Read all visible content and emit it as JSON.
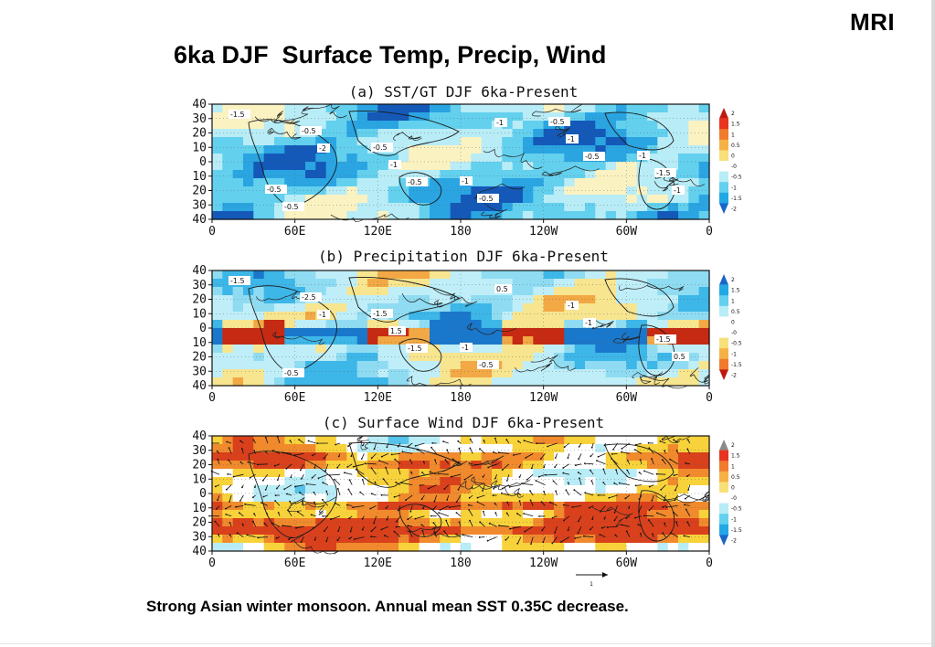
{
  "logo": "MRI",
  "title": "6ka DJF  Surface Temp, Precip, Wind",
  "caption": "Strong Asian winter monsoon. Annual mean SST 0.35C decrease.",
  "chart_data": [
    {
      "type": "heatmap",
      "title": "(a) SST/GT   DJF   6ka-Present",
      "x_ticks": [
        "0",
        "60E",
        "120E",
        "180",
        "120W",
        "60W",
        "0"
      ],
      "y_ticks": [
        "40",
        "30",
        "20",
        "10",
        "0",
        "10",
        "20",
        "30",
        "40"
      ],
      "ylim": [
        -40,
        40
      ],
      "colorbar": {
        "labels": [
          "2",
          "1.5",
          "1",
          "0.5",
          "0",
          "-0",
          "-0.5",
          "-1",
          "-1.5",
          "-2"
        ],
        "colors": [
          "#c0180d",
          "#e8331e",
          "#f07a2e",
          "#f5b146",
          "#f7e07a",
          "#ffffff",
          "#b8ecf6",
          "#63d0ee",
          "#22a8e4",
          "#1966c8"
        ]
      },
      "contour_labels": [
        "-1.5",
        "-2",
        "-0.5",
        "-1",
        "-0.5",
        "-1",
        "-0.5",
        "-1",
        "-0.5",
        "-1",
        "-1.5",
        "-0.5",
        "-0.5",
        "-1",
        "-0.5",
        "-1",
        "-0.5"
      ]
    },
    {
      "type": "heatmap",
      "title": "(b) Precipitation   DJF   6ka-Present",
      "x_ticks": [
        "0",
        "60E",
        "120E",
        "180",
        "120W",
        "60W",
        "0"
      ],
      "y_ticks": [
        "40",
        "30",
        "20",
        "10",
        "0",
        "10",
        "20",
        "30",
        "40"
      ],
      "ylim": [
        -40,
        40
      ],
      "colorbar": {
        "labels": [
          "2",
          "1.5",
          "1",
          "0.5",
          "0",
          "-0",
          "-0.5",
          "-1",
          "-1.5",
          "-2"
        ],
        "colors": [
          "#1966c8",
          "#22a8e4",
          "#63d0ee",
          "#b8ecf6",
          "#ffffff",
          "#ffffff",
          "#f7e07a",
          "#f5b146",
          "#f07a2e",
          "#c0180d"
        ]
      },
      "contour_labels": [
        "-1.5",
        "-1",
        "-1.5",
        "0.5",
        "-1",
        "0.5",
        "-2.5",
        "1.5",
        "-0.5",
        "-1",
        "-1.5",
        "-0.5",
        "-1.5",
        "-1"
      ]
    },
    {
      "type": "heatmap",
      "title": "(c) Surface Wind   DJF   6ka-Present",
      "x_ticks": [
        "0",
        "60E",
        "120E",
        "180",
        "120W",
        "60W",
        "0"
      ],
      "y_ticks": [
        "40",
        "30",
        "20",
        "10",
        "0",
        "10",
        "20",
        "30",
        "40"
      ],
      "ylim": [
        -40,
        40
      ],
      "colorbar": {
        "labels": [
          "2",
          "1.5",
          "1",
          "0.5",
          "0",
          "-0",
          "-0.5",
          "-1",
          "-1.5",
          "-2"
        ],
        "colors": [
          "#8a8a8a",
          "#e8331e",
          "#f07a2e",
          "#f5b146",
          "#f7e07a",
          "#ffffff",
          "#b8ecf6",
          "#63d0ee",
          "#22a8e4",
          "#1966c8"
        ]
      },
      "reference_vector": "1"
    }
  ]
}
